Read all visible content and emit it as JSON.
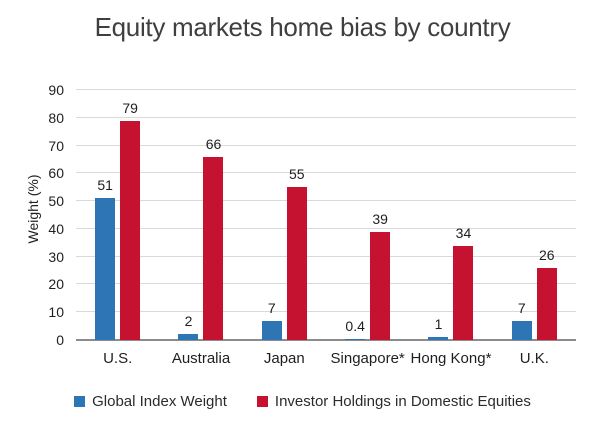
{
  "chart_data": {
    "type": "bar",
    "title": "Equity markets home bias by country",
    "ylabel": "Weight (%)",
    "xlabel": "",
    "ylim": [
      0,
      90
    ],
    "yticks": [
      90,
      80,
      70,
      60,
      50,
      40,
      30,
      20,
      10,
      0
    ],
    "grid": true,
    "legend_position": "bottom",
    "categories": [
      "U.S.",
      "Australia",
      "Japan",
      "Singapore*",
      "Hong Kong*",
      "U.K."
    ],
    "series": [
      {
        "name": "Global Index Weight",
        "color": "#2E75B6",
        "values": [
          51,
          2,
          7,
          0.4,
          1,
          7
        ]
      },
      {
        "name": "Investor Holdings in Domestic Equities",
        "color": "#C41230",
        "values": [
          79,
          66,
          55,
          39,
          34,
          26
        ]
      }
    ]
  },
  "colors": {
    "background": "#FFFFFF",
    "title_text": "#3F3F3F",
    "axis_text": "#1F1F1F",
    "gridline": "#D9D9D9",
    "axis_line": "#8C8C8C",
    "series_blue": "#2E75B6",
    "series_red": "#C41230"
  }
}
